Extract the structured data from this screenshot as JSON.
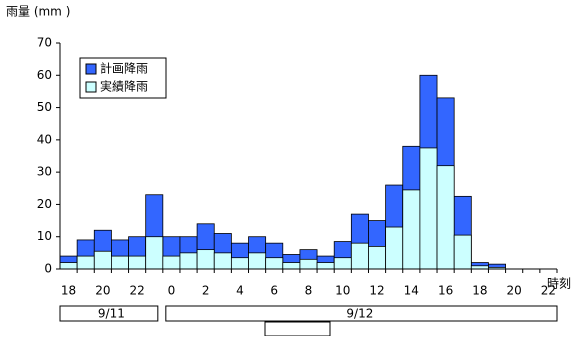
{
  "chart_data": {
    "type": "bar",
    "y_label": "雨量 (mm )",
    "x_label": "時刻",
    "categories": [
      "18",
      null,
      "20",
      null,
      "22",
      null,
      "0",
      null,
      "2",
      null,
      "4",
      null,
      "6",
      null,
      "8",
      null,
      "10",
      null,
      "12",
      null,
      "14",
      null,
      "16",
      null,
      "18",
      null,
      "20",
      null,
      "22"
    ],
    "groups": [
      {
        "label": "9/11",
        "count": 6
      },
      {
        "label": "9/12",
        "count": 23
      }
    ],
    "series": [
      {
        "name": "計画降雨",
        "color": "#3366ff",
        "values": [
          4,
          9,
          12,
          9,
          10,
          23,
          10,
          10,
          14,
          11,
          8,
          10,
          8,
          4.5,
          6,
          4,
          8.5,
          17,
          15,
          26,
          38,
          60,
          53,
          22.5,
          2,
          1.5,
          0,
          0,
          0
        ]
      },
      {
        "name": "実績降雨",
        "color": "#ccffff",
        "values": [
          2,
          4,
          5.5,
          4,
          4,
          10,
          4,
          5,
          6,
          5,
          3.5,
          5,
          3.5,
          2,
          3,
          2,
          3.5,
          8,
          7,
          13,
          24.5,
          37.5,
          32,
          10.5,
          1,
          0.5,
          0,
          0,
          0
        ]
      }
    ],
    "ylim": [
      0,
      70
    ],
    "yticks": [
      0,
      10,
      20,
      30,
      40,
      50,
      60,
      70
    ],
    "grid": false,
    "legend": "top-left"
  }
}
